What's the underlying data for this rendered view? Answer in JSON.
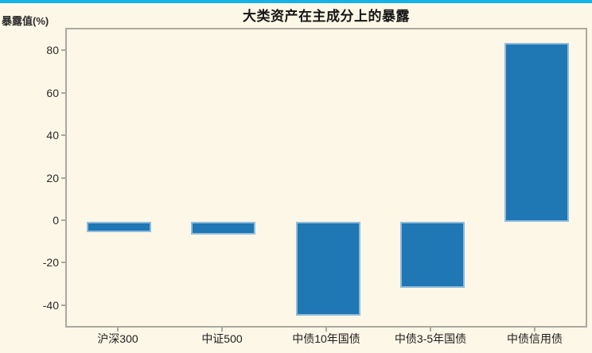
{
  "page": {
    "background_color": "#fdf7e7",
    "accent_color": "#15b2e8"
  },
  "chart_data": {
    "type": "bar",
    "title": "大类资产在主成分上的暴露",
    "ylabel": "暴露值(%)",
    "xlabel": "",
    "categories": [
      "沪深300",
      "中证500",
      "中债10年国债",
      "中债3-5年国债",
      "中债信用债"
    ],
    "values": [
      -5,
      -6,
      -44,
      -31,
      84
    ],
    "yticks": [
      80,
      60,
      40,
      20,
      0,
      -20,
      -40
    ],
    "ylim": [
      -50.5,
      90.5
    ],
    "grid": false,
    "legend": "none",
    "bar_color": "#1f77b4",
    "bar_edge_color": "#8ebcdc",
    "axis_color": "#aaa9a0"
  }
}
